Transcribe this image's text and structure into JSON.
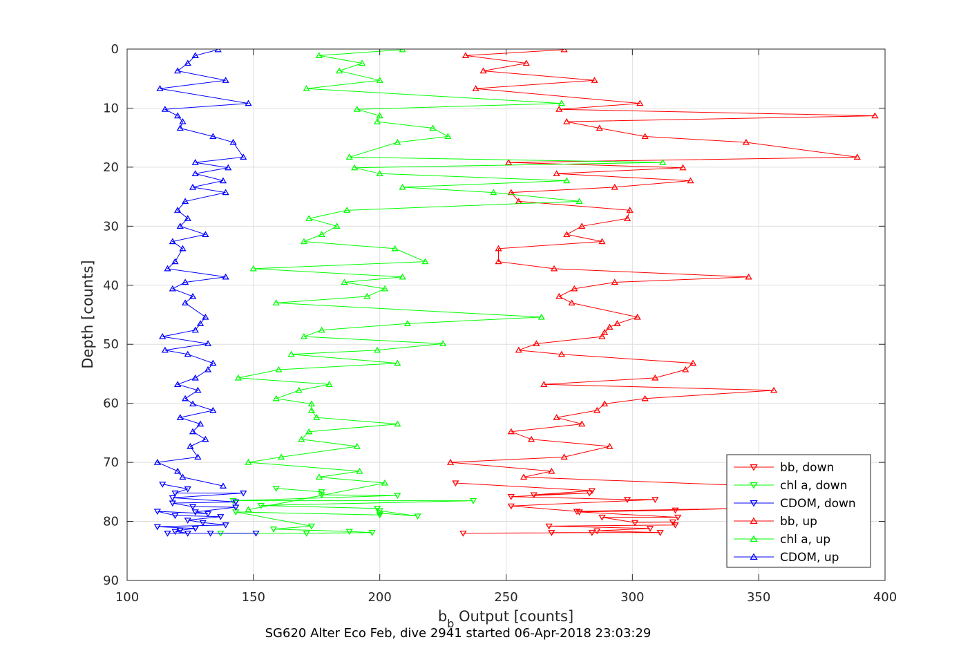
{
  "chart_data": {
    "type": "line",
    "xlabel": "b",
    "xlabel_sub": "b",
    "xlabel_rest": " Output [counts]",
    "ylabel": "Depth [counts]",
    "subtitle": "SG620 Alter Eco Feb, dive 2941 started 06-Apr-2018 23:03:29",
    "xlim": [
      100,
      400
    ],
    "ylim": [
      90,
      0
    ],
    "y_reversed": true,
    "grid": true,
    "legend_position": "bottom-right",
    "xticks": [
      100,
      150,
      200,
      250,
      300,
      350,
      400
    ],
    "yticks": [
      0,
      10,
      20,
      30,
      40,
      50,
      60,
      70,
      80,
      90
    ],
    "colors": {
      "red": "#ff0000",
      "green": "#00ff00",
      "blue": "#0000ff",
      "grid": "#dedede",
      "axis": "#262626"
    },
    "series": [
      {
        "name": "bb, down",
        "color": "#ff0000",
        "marker": "triangle-down",
        "points": [
          [
            230,
            73.5
          ],
          [
            284,
            74.8
          ],
          [
            261,
            75.5
          ],
          [
            283,
            75.2
          ],
          [
            252,
            75.8
          ],
          [
            298,
            76.3
          ],
          [
            309,
            76.3
          ],
          [
            252,
            77.4
          ],
          [
            278,
            78.3
          ],
          [
            343,
            77.8
          ],
          [
            317,
            78.1
          ],
          [
            279,
            78.4
          ],
          [
            318,
            79.3
          ],
          [
            288,
            79.3
          ],
          [
            301,
            80.2
          ],
          [
            316,
            80.1
          ],
          [
            317,
            80.6
          ],
          [
            267,
            80.8
          ],
          [
            307,
            81.2
          ],
          [
            286,
            81.6
          ],
          [
            311,
            81.9
          ],
          [
            268,
            81.9
          ],
          [
            284,
            81.9
          ],
          [
            233,
            82.0
          ]
        ]
      },
      {
        "name": "chl a, down",
        "color": "#00ff00",
        "marker": "triangle-down",
        "points": [
          [
            159,
            74.4
          ],
          [
            177,
            75.0
          ],
          [
            177,
            75.5
          ],
          [
            207,
            75.6
          ],
          [
            142,
            76.5
          ],
          [
            237,
            76.5
          ],
          [
            153,
            77.3
          ],
          [
            199,
            77.8
          ],
          [
            200,
            78.2
          ],
          [
            215,
            79.1
          ],
          [
            200,
            78.6
          ],
          [
            200,
            78.9
          ],
          [
            143,
            78.4
          ],
          [
            173,
            80.8
          ],
          [
            158,
            81.3
          ],
          [
            188,
            81.7
          ],
          [
            197,
            81.9
          ],
          [
            171,
            82.0
          ],
          [
            137,
            82.0
          ]
        ]
      },
      {
        "name": "CDOM, down",
        "color": "#0000ff",
        "marker": "triangle-down",
        "points": [
          [
            114,
            73.7
          ],
          [
            124,
            74.5
          ],
          [
            119,
            75.2
          ],
          [
            146,
            75.2
          ],
          [
            118,
            76.0
          ],
          [
            143,
            76.7
          ],
          [
            118,
            76.9
          ],
          [
            126,
            77.5
          ],
          [
            143,
            77.6
          ],
          [
            127,
            78.4
          ],
          [
            132,
            78.7
          ],
          [
            112,
            78.3
          ],
          [
            119,
            79.0
          ],
          [
            137,
            79.2
          ],
          [
            124,
            79.8
          ],
          [
            130,
            80.2
          ],
          [
            139,
            80.6
          ],
          [
            112,
            80.9
          ],
          [
            127,
            81.2
          ],
          [
            121,
            81.5
          ],
          [
            119,
            81.7
          ],
          [
            124,
            82.0
          ],
          [
            116,
            82.0
          ],
          [
            133,
            82.0
          ],
          [
            151,
            82.0
          ]
        ]
      },
      {
        "name": "bb, up",
        "color": "#ff0000",
        "marker": "triangle-up",
        "points": [
          [
            273,
            0.1
          ],
          [
            234,
            1.1
          ],
          [
            258,
            2.4
          ],
          [
            241,
            3.7
          ],
          [
            285,
            5.3
          ],
          [
            238,
            6.7
          ],
          [
            303,
            9.2
          ],
          [
            271,
            10.2
          ],
          [
            396,
            11.3
          ],
          [
            274,
            12.3
          ],
          [
            287,
            13.4
          ],
          [
            305,
            14.8
          ],
          [
            345,
            15.8
          ],
          [
            389,
            18.3
          ],
          [
            251,
            19.2
          ],
          [
            320,
            20.1
          ],
          [
            270,
            21.1
          ],
          [
            323,
            22.3
          ],
          [
            293,
            23.4
          ],
          [
            252,
            24.3
          ],
          [
            255,
            25.8
          ],
          [
            299,
            27.3
          ],
          [
            298,
            28.7
          ],
          [
            280,
            30.0
          ],
          [
            274,
            31.4
          ],
          [
            288,
            32.6
          ],
          [
            247,
            33.8
          ],
          [
            247,
            36.0
          ],
          [
            269,
            37.2
          ],
          [
            346,
            38.6
          ],
          [
            293,
            39.5
          ],
          [
            277,
            40.6
          ],
          [
            271,
            41.9
          ],
          [
            276,
            43.0
          ],
          [
            302,
            45.4
          ],
          [
            294,
            46.5
          ],
          [
            291,
            47.1
          ],
          [
            289,
            48.0
          ],
          [
            288,
            48.7
          ],
          [
            262,
            49.9
          ],
          [
            255,
            51.0
          ],
          [
            272,
            51.7
          ],
          [
            324,
            53.2
          ],
          [
            321,
            54.3
          ],
          [
            309,
            55.7
          ],
          [
            265,
            56.8
          ],
          [
            356,
            57.8
          ],
          [
            305,
            59.2
          ],
          [
            289,
            60.1
          ],
          [
            286,
            61.2
          ],
          [
            270,
            62.4
          ],
          [
            280,
            63.5
          ],
          [
            252,
            64.8
          ],
          [
            260,
            66.1
          ],
          [
            291,
            67.3
          ],
          [
            273,
            69.1
          ],
          [
            228,
            70.0
          ],
          [
            268,
            71.5
          ],
          [
            257,
            72.5
          ],
          [
            350,
            74.0
          ]
        ]
      },
      {
        "name": "chl a, up",
        "color": "#00ff00",
        "marker": "triangle-up",
        "points": [
          [
            209,
            0.1
          ],
          [
            176,
            1.1
          ],
          [
            193,
            2.4
          ],
          [
            184,
            3.7
          ],
          [
            200,
            5.3
          ],
          [
            171,
            6.7
          ],
          [
            272,
            9.2
          ],
          [
            191,
            10.2
          ],
          [
            200,
            11.3
          ],
          [
            199,
            12.3
          ],
          [
            221,
            13.4
          ],
          [
            227,
            14.8
          ],
          [
            207,
            15.8
          ],
          [
            188,
            18.3
          ],
          [
            312,
            19.2
          ],
          [
            190,
            20.1
          ],
          [
            200,
            21.1
          ],
          [
            274,
            22.3
          ],
          [
            209,
            23.4
          ],
          [
            245,
            24.3
          ],
          [
            279,
            25.8
          ],
          [
            187,
            27.3
          ],
          [
            172,
            28.7
          ],
          [
            183,
            30.0
          ],
          [
            177,
            31.4
          ],
          [
            170,
            32.6
          ],
          [
            206,
            33.8
          ],
          [
            218,
            36.0
          ],
          [
            150,
            37.2
          ],
          [
            209,
            38.6
          ],
          [
            186,
            39.5
          ],
          [
            202,
            40.6
          ],
          [
            195,
            41.9
          ],
          [
            159,
            43.0
          ],
          [
            264,
            45.4
          ],
          [
            211,
            46.5
          ],
          [
            177,
            47.6
          ],
          [
            170,
            48.7
          ],
          [
            225,
            49.9
          ],
          [
            199,
            51.0
          ],
          [
            165,
            51.7
          ],
          [
            207,
            53.2
          ],
          [
            160,
            54.3
          ],
          [
            144,
            55.7
          ],
          [
            180,
            56.8
          ],
          [
            168,
            57.8
          ],
          [
            159,
            59.2
          ],
          [
            173,
            60.1
          ],
          [
            173,
            61.2
          ],
          [
            175,
            62.4
          ],
          [
            207,
            63.5
          ],
          [
            172,
            64.8
          ],
          [
            169,
            66.1
          ],
          [
            191,
            67.3
          ],
          [
            161,
            69.1
          ],
          [
            148,
            70.0
          ],
          [
            192,
            71.5
          ],
          [
            176,
            72.5
          ],
          [
            202,
            73.5
          ],
          [
            148,
            78.0
          ]
        ]
      },
      {
        "name": "CDOM, up",
        "color": "#0000ff",
        "marker": "triangle-up",
        "points": [
          [
            136,
            0.1
          ],
          [
            127,
            1.1
          ],
          [
            124,
            2.4
          ],
          [
            120,
            3.7
          ],
          [
            139,
            5.3
          ],
          [
            113,
            6.7
          ],
          [
            148,
            9.2
          ],
          [
            115,
            10.2
          ],
          [
            120,
            11.3
          ],
          [
            122,
            12.3
          ],
          [
            121,
            13.4
          ],
          [
            134,
            14.8
          ],
          [
            142,
            15.8
          ],
          [
            146,
            18.3
          ],
          [
            127,
            19.2
          ],
          [
            140,
            20.1
          ],
          [
            127,
            21.1
          ],
          [
            138,
            22.3
          ],
          [
            126,
            23.4
          ],
          [
            139,
            24.3
          ],
          [
            123,
            25.8
          ],
          [
            120,
            27.3
          ],
          [
            124,
            28.7
          ],
          [
            121,
            30.0
          ],
          [
            131,
            31.4
          ],
          [
            118,
            32.6
          ],
          [
            122,
            33.8
          ],
          [
            119,
            36.0
          ],
          [
            116,
            37.2
          ],
          [
            139,
            38.6
          ],
          [
            123,
            39.5
          ],
          [
            118,
            40.6
          ],
          [
            126,
            41.9
          ],
          [
            123,
            43.0
          ],
          [
            131,
            45.4
          ],
          [
            129,
            46.5
          ],
          [
            127,
            47.6
          ],
          [
            114,
            48.7
          ],
          [
            132,
            49.9
          ],
          [
            115,
            51.0
          ],
          [
            124,
            51.7
          ],
          [
            134,
            53.2
          ],
          [
            132,
            54.3
          ],
          [
            127,
            55.7
          ],
          [
            120,
            56.8
          ],
          [
            128,
            57.8
          ],
          [
            123,
            59.2
          ],
          [
            126,
            60.1
          ],
          [
            134,
            61.2
          ],
          [
            121,
            62.4
          ],
          [
            129,
            63.5
          ],
          [
            126,
            64.8
          ],
          [
            131,
            66.1
          ],
          [
            125,
            67.3
          ],
          [
            128,
            69.1
          ],
          [
            112,
            70.0
          ],
          [
            120,
            71.5
          ],
          [
            122,
            72.5
          ],
          [
            138,
            74.0
          ]
        ]
      }
    ]
  }
}
